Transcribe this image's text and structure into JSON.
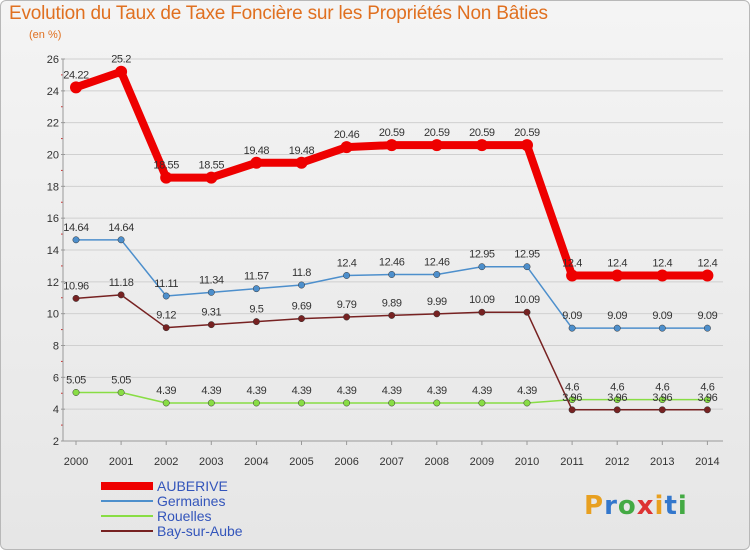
{
  "header": {
    "title": "Evolution du Taux de Taxe Foncière sur les Propriétés Non Bâties",
    "unit": "(en %)"
  },
  "chart_data": {
    "type": "line",
    "title": "Evolution du Taux de Taxe Foncière sur les Propriétés Non Bâties",
    "ylabel": "(en %)",
    "xlabel": "",
    "ylim": [
      2,
      26
    ],
    "yticks": [
      2,
      4,
      6,
      8,
      10,
      12,
      14,
      16,
      18,
      20,
      22,
      24,
      26
    ],
    "grid": "horizontal",
    "legend": "bottom-left",
    "categories": [
      "2000",
      "2001",
      "2002",
      "2003",
      "2004",
      "2005",
      "2006",
      "2007",
      "2008",
      "2009",
      "2010",
      "2011",
      "2012",
      "2013",
      "2014"
    ],
    "series": [
      {
        "name": "AUBERIVE",
        "color": "#ee0000",
        "values": [
          24.22,
          25.2,
          18.55,
          18.55,
          19.48,
          19.48,
          20.46,
          20.59,
          20.59,
          20.59,
          20.59,
          12.4,
          12.4,
          12.4,
          12.4
        ],
        "labels": [
          "24.22",
          "25.2",
          "18.55",
          "18.55",
          "19.48",
          "19.48",
          "20.46",
          "20.59",
          "20.59",
          "20.59",
          "20.59",
          "12.4",
          "12.4",
          "12.4",
          "12.4"
        ]
      },
      {
        "name": "Germaines",
        "color": "#4d8fcc",
        "values": [
          14.64,
          14.64,
          11.11,
          11.34,
          11.57,
          11.8,
          12.4,
          12.46,
          12.46,
          12.95,
          12.95,
          9.09,
          9.09,
          9.09,
          9.09
        ],
        "labels": [
          "14.64",
          "14.64",
          "11.11",
          "11.34",
          "11.57",
          "11.8",
          "12.4",
          "12.46",
          "12.46",
          "12.95",
          "12.95",
          "9.09",
          "9.09",
          "9.09",
          "9.09"
        ]
      },
      {
        "name": "Rouelles",
        "color": "#88dd44",
        "values": [
          5.05,
          5.05,
          4.39,
          4.39,
          4.39,
          4.39,
          4.39,
          4.39,
          4.39,
          4.39,
          4.39,
          4.6,
          4.6,
          4.6,
          4.6
        ],
        "labels": [
          "5.05",
          "5.05",
          "4.39",
          "4.39",
          "4.39",
          "4.39",
          "4.39",
          "4.39",
          "4.39",
          "4.39",
          "4.39",
          "4.6",
          "4.6",
          "4.6",
          "4.6"
        ]
      },
      {
        "name": "Bay-sur-Aube",
        "color": "#772222",
        "values": [
          10.96,
          11.18,
          9.12,
          9.31,
          9.5,
          9.69,
          9.79,
          9.89,
          9.99,
          10.09,
          10.09,
          3.96,
          3.96,
          3.96,
          3.96
        ],
        "labels": [
          "10.96",
          "11.18",
          "9.12",
          "9.31",
          "9.5",
          "9.69",
          "9.79",
          "9.89",
          "9.99",
          "10.09",
          "10.09",
          "3.96",
          "3.96",
          "3.96",
          "3.96"
        ]
      }
    ]
  },
  "logo": {
    "text": "Proxiti",
    "colors": [
      "#e8a020",
      "#3377cc",
      "#44aa44",
      "#dd3333",
      "#e8a020",
      "#3377cc",
      "#44aa44"
    ]
  }
}
